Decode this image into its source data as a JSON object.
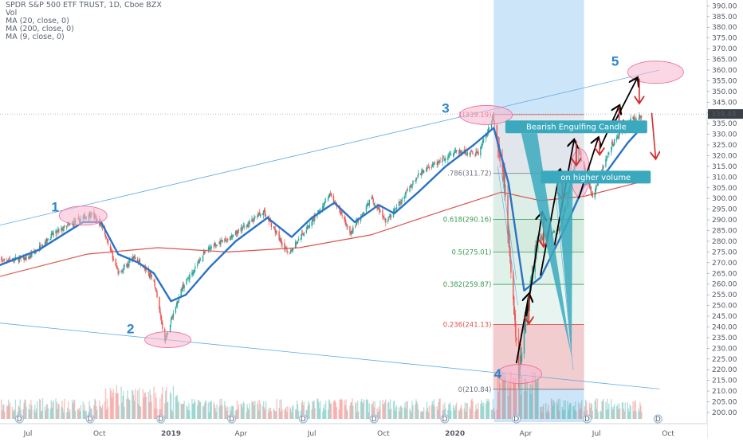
{
  "header": {
    "symbol_line": "SPDR S&P 500 ETF TRUST, 1D, Cboe BZX",
    "vol_label": "Vol",
    "ma1_label": "MA (20, close, 0)",
    "ma2_label": "MA (200, close, 0)",
    "ma3_label": "MA (9, close, 0)"
  },
  "colors": {
    "up": "#26a69a",
    "down": "#ef5350",
    "ma_blue": "#2a73c4",
    "ma_red": "#d9534f",
    "trend_line": "#5da9e9",
    "ellipse_fill": "#f7b7cf",
    "ellipse_stroke": "#e86b96",
    "callout": "#3aa9bd",
    "price_badge": "#3b3f46",
    "arrow_black": "#000000",
    "arrow_red": "#d32f2f"
  },
  "chart_data": {
    "type": "candlestick",
    "title": "SPDR S&P 500 ETF TRUST, 1D, Cboe BZX",
    "ylim": [
      197,
      392
    ],
    "y_ticks": [
      200,
      205,
      210,
      215,
      220,
      225,
      230,
      235,
      240,
      245,
      250,
      255,
      260,
      265,
      270,
      275,
      280,
      285,
      290,
      295,
      300,
      305,
      310,
      315,
      320,
      325,
      330,
      335,
      340,
      345,
      350,
      355,
      360,
      365,
      370,
      375,
      380,
      385,
      390
    ],
    "y_tick_labels": [
      "200.00",
      "205.00",
      "210.00",
      "215.00",
      "220.00",
      "225.00",
      "230.00",
      "235.00",
      "240.00",
      "245.00",
      "250.00",
      "255.00",
      "260.00",
      "265.00",
      "270.00",
      "275.00",
      "280.00",
      "285.00",
      "290.00",
      "295.00",
      "300.00",
      "305.00",
      "310.00",
      "315.00",
      "320.00",
      "325.00",
      "330.00",
      "335.00",
      "340.00",
      "345.00",
      "350.00",
      "355.00",
      "360.00",
      "365.00",
      "370.00",
      "375.00",
      "380.00",
      "385.00",
      "390.00"
    ],
    "x_ticks": [
      {
        "label": "Jul",
        "date": "2018-07-01"
      },
      {
        "label": "Oct",
        "date": "2018-10-01"
      },
      {
        "label": "2019",
        "date": "2019-01-01"
      },
      {
        "label": "Apr",
        "date": "2019-04-01"
      },
      {
        "label": "Jul",
        "date": "2019-07-01"
      },
      {
        "label": "Oct",
        "date": "2019-10-01"
      },
      {
        "label": "2020",
        "date": "2020-01-01"
      },
      {
        "label": "Apr",
        "date": "2020-04-01"
      },
      {
        "label": "Jul",
        "date": "2020-07-01"
      },
      {
        "label": "Oct",
        "date": "2020-10-01"
      }
    ],
    "last_price": "339.48",
    "price_path": [
      {
        "date": "2018-05-20",
        "close": 271
      },
      {
        "date": "2018-07-01",
        "close": 272
      },
      {
        "date": "2018-08-01",
        "close": 283
      },
      {
        "date": "2018-09-20",
        "close": 293
      },
      {
        "date": "2018-10-05",
        "close": 287
      },
      {
        "date": "2018-10-25",
        "close": 265
      },
      {
        "date": "2018-11-15",
        "close": 273
      },
      {
        "date": "2018-12-10",
        "close": 262
      },
      {
        "date": "2018-12-24",
        "close": 234
      },
      {
        "date": "2019-01-15",
        "close": 258
      },
      {
        "date": "2019-02-15",
        "close": 276
      },
      {
        "date": "2019-03-20",
        "close": 282
      },
      {
        "date": "2019-04-30",
        "close": 294
      },
      {
        "date": "2019-06-01",
        "close": 274
      },
      {
        "date": "2019-07-25",
        "close": 302
      },
      {
        "date": "2019-08-20",
        "close": 284
      },
      {
        "date": "2019-09-15",
        "close": 300
      },
      {
        "date": "2019-10-05",
        "close": 289
      },
      {
        "date": "2019-11-15",
        "close": 311
      },
      {
        "date": "2019-12-31",
        "close": 322
      },
      {
        "date": "2020-01-31",
        "close": 321
      },
      {
        "date": "2020-02-19",
        "close": 338
      },
      {
        "date": "2020-03-05",
        "close": 305
      },
      {
        "date": "2020-03-23",
        "close": 219
      },
      {
        "date": "2020-04-15",
        "close": 280
      },
      {
        "date": "2020-05-15",
        "close": 286
      },
      {
        "date": "2020-06-08",
        "close": 323
      },
      {
        "date": "2020-06-26",
        "close": 301
      },
      {
        "date": "2020-07-20",
        "close": 325
      },
      {
        "date": "2020-08-15",
        "close": 337
      },
      {
        "date": "2020-08-30",
        "close": 339
      }
    ],
    "ma20": [
      {
        "date": "2018-05-20",
        "value": 268
      },
      {
        "date": "2018-07-15",
        "value": 276
      },
      {
        "date": "2018-09-10",
        "value": 289
      },
      {
        "date": "2018-10-03",
        "value": 289
      },
      {
        "date": "2018-10-25",
        "value": 274
      },
      {
        "date": "2018-11-20",
        "value": 270
      },
      {
        "date": "2018-12-10",
        "value": 265
      },
      {
        "date": "2019-01-01",
        "value": 252
      },
      {
        "date": "2019-01-20",
        "value": 255
      },
      {
        "date": "2019-02-20",
        "value": 268
      },
      {
        "date": "2019-03-25",
        "value": 280
      },
      {
        "date": "2019-05-05",
        "value": 291
      },
      {
        "date": "2019-06-05",
        "value": 282
      },
      {
        "date": "2019-07-01",
        "value": 291
      },
      {
        "date": "2019-07-30",
        "value": 298
      },
      {
        "date": "2019-08-25",
        "value": 289
      },
      {
        "date": "2019-09-25",
        "value": 297
      },
      {
        "date": "2019-10-15",
        "value": 293
      },
      {
        "date": "2019-11-15",
        "value": 303
      },
      {
        "date": "2019-12-20",
        "value": 315
      },
      {
        "date": "2020-01-25",
        "value": 325
      },
      {
        "date": "2020-02-20",
        "value": 333
      },
      {
        "date": "2020-03-10",
        "value": 307
      },
      {
        "date": "2020-03-30",
        "value": 257
      },
      {
        "date": "2020-04-20",
        "value": 263
      },
      {
        "date": "2020-05-20",
        "value": 285
      },
      {
        "date": "2020-06-15",
        "value": 306
      },
      {
        "date": "2020-07-15",
        "value": 313
      },
      {
        "date": "2020-08-10",
        "value": 326
      },
      {
        "date": "2020-08-30",
        "value": 334
      }
    ],
    "ma200": [
      {
        "date": "2018-05-20",
        "value": 263
      },
      {
        "date": "2018-09-15",
        "value": 274
      },
      {
        "date": "2018-12-15",
        "value": 277
      },
      {
        "date": "2019-03-15",
        "value": 275
      },
      {
        "date": "2019-06-15",
        "value": 277
      },
      {
        "date": "2019-09-15",
        "value": 283
      },
      {
        "date": "2019-12-15",
        "value": 294
      },
      {
        "date": "2020-03-01",
        "value": 303
      },
      {
        "date": "2020-04-20",
        "value": 299
      },
      {
        "date": "2020-06-15",
        "value": 301
      },
      {
        "date": "2020-08-30",
        "value": 308
      }
    ],
    "fib_levels": [
      {
        "label": "1(339.19)",
        "value": 339.19,
        "color": "#d9534f"
      },
      {
        "label": ".786(311.72)",
        "value": 311.72,
        "color": "#6e7480"
      },
      {
        "label": "0.618(290.16)",
        "value": 290.16,
        "color": "#3a9b53"
      },
      {
        "label": "0.5(275.01)",
        "value": 275.01,
        "color": "#3a9b53"
      },
      {
        "label": "0.382(259.87)",
        "value": 259.87,
        "color": "#3a9b53"
      },
      {
        "label": "0.236(241.13)",
        "value": 241.13,
        "color": "#d9534f"
      },
      {
        "label": "0(210.84)",
        "value": 210.84,
        "color": "#6e7480"
      }
    ],
    "fib_range": {
      "start": "2020-02-19",
      "end": "2020-06-15"
    },
    "highlight_band": {
      "start": "2020-02-20",
      "end": "2020-06-15"
    },
    "wave_labels": [
      {
        "label": "1",
        "date": "2018-08-05",
        "value": 294
      },
      {
        "label": "2",
        "date": "2018-11-10",
        "value": 237
      },
      {
        "label": "3",
        "date": "2019-12-20",
        "value": 340
      },
      {
        "label": "4",
        "date": "2020-02-25",
        "value": 216
      },
      {
        "label": "5",
        "date": "2020-07-25",
        "value": 362
      }
    ],
    "ellipses": [
      {
        "date": "2018-09-10",
        "value": 292
      },
      {
        "date": "2018-12-28",
        "value": 234
      },
      {
        "date": "2020-02-10",
        "value": 339
      },
      {
        "date": "2020-03-24",
        "value": 218
      },
      {
        "date": "2020-09-15",
        "value": 359
      },
      {
        "date": "2020-06-10",
        "value": 312
      }
    ],
    "annotations": [
      {
        "text": "Bearish Engulfing Candle",
        "date": "2020-04-25",
        "value": 333.5
      },
      {
        "text": "on higher volume",
        "date": "2020-05-20",
        "value": 310
      }
    ],
    "event_markers": [
      "D",
      "D",
      "D",
      "D",
      "D",
      "D",
      "D",
      "D",
      "D",
      "D",
      "D",
      "D",
      "D",
      "D",
      "D",
      "D",
      "D",
      "D"
    ]
  }
}
